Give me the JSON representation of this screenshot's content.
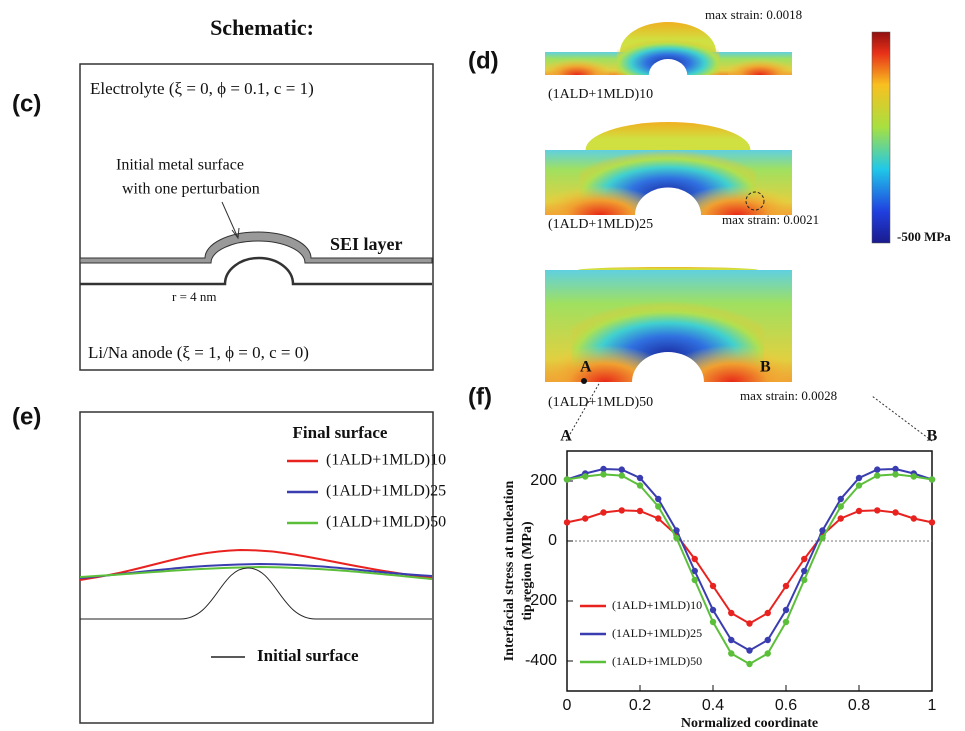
{
  "header": {
    "title": "Schematic:"
  },
  "panel_labels": [
    "(c)",
    "(d)",
    "(e)",
    "(f)"
  ],
  "schematic": {
    "electrolyte": "Electrolyte (ξ = 0, ϕ = 0.1, c = 1)",
    "surface_note": [
      "Initial metal surface",
      "with one perturbation"
    ],
    "sei": "SEI layer",
    "radius": "r = 4 nm",
    "anode": "Li/Na anode (ξ = 1, ϕ = 0, c = 0)"
  },
  "simulations": {
    "panels": [
      {
        "label": "(1ALD+1MLD)10",
        "max_strain": "max strain: 0.0018"
      },
      {
        "label": "(1ALD+1MLD)25",
        "max_strain": "max strain: 0.0021"
      },
      {
        "label": "(1ALD+1MLD)50",
        "max_strain": "max strain: 0.0028"
      }
    ],
    "point_a": "A",
    "point_b": "B",
    "colorbar_label": "-500 MPa"
  },
  "final_surface": {
    "legend_title": "Final surface",
    "series": [
      {
        "name": "(1ALD+1MLD)10",
        "color": "#e8221f"
      },
      {
        "name": "(1ALD+1MLD)25",
        "color": "#3a3db0"
      },
      {
        "name": "(1ALD+1MLD)50",
        "color": "#5cbf3a"
      }
    ],
    "initial": "Initial surface"
  },
  "chart_data": {
    "type": "line",
    "xlabel": "Normalized coordinate",
    "ylabel": [
      "Interfacial stress at nucleation",
      "tip region (MPa)"
    ],
    "annotations": [
      "A",
      "B"
    ],
    "x": [
      0,
      0.05,
      0.1,
      0.15,
      0.2,
      0.25,
      0.3,
      0.35,
      0.4,
      0.45,
      0.5,
      0.55,
      0.6,
      0.65,
      0.7,
      0.75,
      0.8,
      0.85,
      0.9,
      0.95,
      1
    ],
    "series": [
      {
        "name": "(1ALD+1MLD)10",
        "color": "#e8221f",
        "values": [
          62,
          75,
          95,
          102,
          100,
          75,
          20,
          -60,
          -150,
          -240,
          -275,
          -240,
          -150,
          -60,
          20,
          75,
          100,
          102,
          95,
          75,
          62
        ]
      },
      {
        "name": "(1ALD+1MLD)25",
        "color": "#3a3db0",
        "values": [
          205,
          225,
          240,
          238,
          210,
          140,
          35,
          -100,
          -230,
          -330,
          -365,
          -330,
          -230,
          -100,
          35,
          140,
          210,
          238,
          240,
          225,
          205
        ]
      },
      {
        "name": "(1ALD+1MLD)50",
        "color": "#5cbf3a",
        "values": [
          205,
          215,
          222,
          218,
          185,
          115,
          10,
          -130,
          -270,
          -375,
          -410,
          -375,
          -270,
          -130,
          10,
          115,
          185,
          218,
          222,
          215,
          205
        ]
      }
    ],
    "xlim": [
      0,
      1
    ],
    "ylim": [
      -500,
      300
    ],
    "xticks": [
      0,
      0.2,
      0.4,
      0.6,
      0.8,
      1
    ],
    "yticks": [
      -400,
      -200,
      0,
      200
    ],
    "reference_line": 0
  }
}
